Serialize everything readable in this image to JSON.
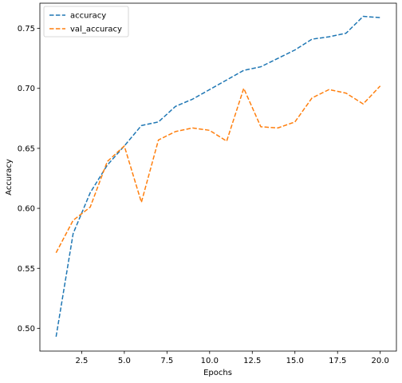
{
  "chart_data": {
    "type": "line",
    "title": "",
    "xlabel": "Epochs",
    "ylabel": "Accuracy",
    "xlim": [
      0.05,
      20.95
    ],
    "ylim": [
      0.481,
      0.771
    ],
    "xticks": [
      2.5,
      5.0,
      7.5,
      10.0,
      12.5,
      15.0,
      17.5,
      20.0
    ],
    "xtick_labels": [
      "2.5",
      "5.0",
      "7.5",
      "10.0",
      "12.5",
      "15.0",
      "17.5",
      "20.0"
    ],
    "yticks": [
      0.5,
      0.55,
      0.6,
      0.65,
      0.7,
      0.75
    ],
    "ytick_labels": [
      "0.50",
      "0.55",
      "0.60",
      "0.65",
      "0.70",
      "0.75"
    ],
    "grid": false,
    "legend_position": "top-left",
    "x": [
      1,
      2,
      3,
      4,
      5,
      6,
      7,
      8,
      9,
      10,
      11,
      12,
      13,
      14,
      15,
      16,
      17,
      18,
      19,
      20
    ],
    "series": [
      {
        "name": "accuracy",
        "color": "#1f77b4",
        "linestyle": "dashed",
        "values": [
          0.493,
          0.579,
          0.613,
          0.636,
          0.652,
          0.669,
          0.672,
          0.685,
          0.691,
          0.699,
          0.707,
          0.715,
          0.718,
          0.725,
          0.732,
          0.741,
          0.743,
          0.746,
          0.76,
          0.759
        ]
      },
      {
        "name": "val_accuracy",
        "color": "#ff7f0e",
        "linestyle": "dashed",
        "values": [
          0.563,
          0.59,
          0.601,
          0.639,
          0.652,
          0.605,
          0.657,
          0.664,
          0.667,
          0.665,
          0.656,
          0.7,
          0.668,
          0.667,
          0.672,
          0.692,
          0.699,
          0.696,
          0.687,
          0.702
        ]
      }
    ]
  }
}
